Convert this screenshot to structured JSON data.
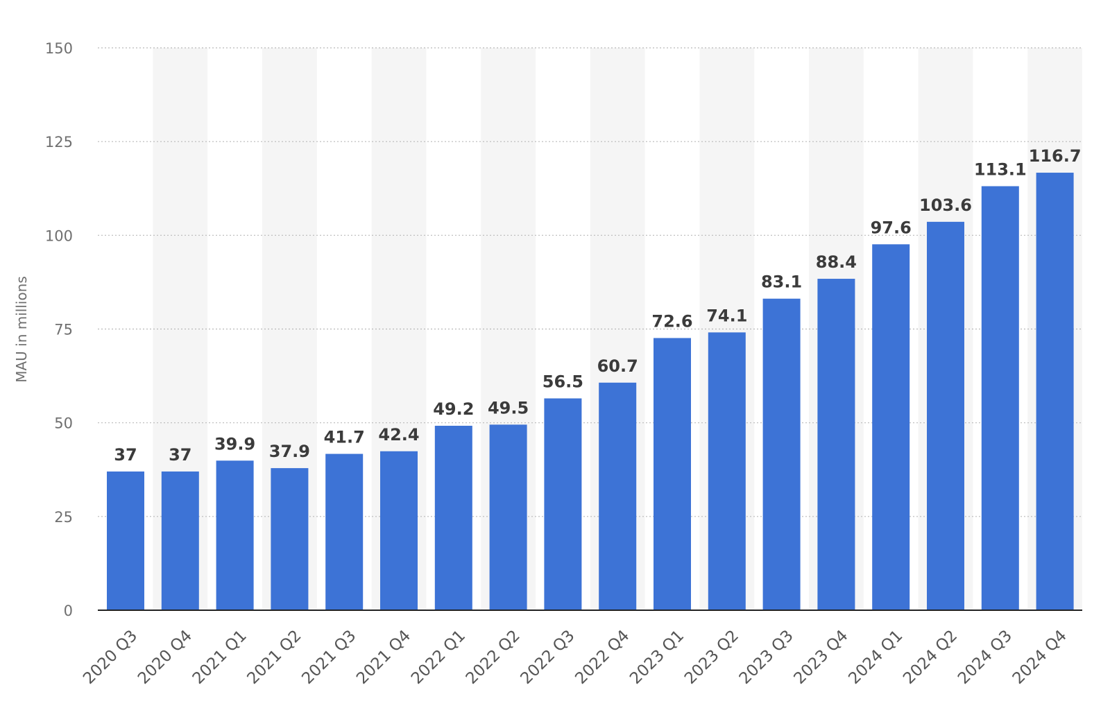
{
  "chart_data": {
    "type": "bar",
    "ylabel": "MAU in millions",
    "xlabel": "",
    "ylim": [
      0,
      150
    ],
    "yticks": [
      0,
      25,
      50,
      75,
      100,
      125,
      150
    ],
    "categories": [
      "2020 Q3",
      "2020 Q4",
      "2021 Q1",
      "2021 Q2",
      "2021 Q3",
      "2021 Q4",
      "2022 Q1",
      "2022 Q2",
      "2022 Q3",
      "2022 Q4",
      "2023 Q1",
      "2023 Q2",
      "2023 Q3",
      "2023 Q4",
      "2024 Q1",
      "2024 Q2",
      "2024 Q3",
      "2024 Q4"
    ],
    "values": [
      37,
      37,
      39.9,
      37.9,
      41.7,
      42.4,
      49.2,
      49.5,
      56.5,
      60.7,
      72.6,
      74.1,
      83.1,
      88.4,
      97.6,
      103.6,
      113.1,
      116.7
    ],
    "value_labels": [
      "37",
      "37",
      "39.9",
      "37.9",
      "41.7",
      "42.4",
      "49.2",
      "49.5",
      "56.5",
      "60.7",
      "72.6",
      "74.1",
      "83.1",
      "88.4",
      "97.6",
      "103.6",
      "113.1",
      "116.7"
    ],
    "grid": true,
    "bar_color": "#3d73d6",
    "band_color": "#f5f5f5",
    "axis_color": "#222222"
  }
}
